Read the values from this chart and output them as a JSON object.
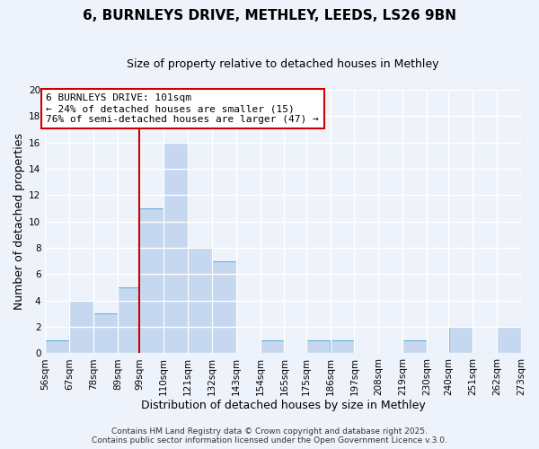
{
  "title": "6, BURNLEYS DRIVE, METHLEY, LEEDS, LS26 9BN",
  "subtitle": "Size of property relative to detached houses in Methley",
  "xlabel": "Distribution of detached houses by size in Methley",
  "ylabel": "Number of detached properties",
  "bin_edges": [
    56,
    67,
    78,
    89,
    99,
    110,
    121,
    132,
    143,
    154,
    165,
    175,
    186,
    197,
    208,
    219,
    230,
    240,
    251,
    262,
    273
  ],
  "counts": [
    1,
    4,
    3,
    5,
    11,
    16,
    8,
    7,
    0,
    1,
    0,
    1,
    1,
    0,
    0,
    1,
    0,
    2,
    0,
    2
  ],
  "bar_color": "#c5d8f0",
  "bar_edge_color": "#6aaed6",
  "vline_x": 99,
  "vline_color": "#cc0000",
  "ylim": [
    0,
    20
  ],
  "yticks": [
    0,
    2,
    4,
    6,
    8,
    10,
    12,
    14,
    16,
    18,
    20
  ],
  "tick_labels": [
    "56sqm",
    "67sqm",
    "78sqm",
    "89sqm",
    "99sqm",
    "110sqm",
    "121sqm",
    "132sqm",
    "143sqm",
    "154sqm",
    "165sqm",
    "175sqm",
    "186sqm",
    "197sqm",
    "208sqm",
    "219sqm",
    "230sqm",
    "240sqm",
    "251sqm",
    "262sqm",
    "273sqm"
  ],
  "annotation_title": "6 BURNLEYS DRIVE: 101sqm",
  "annotation_line1": "← 24% of detached houses are smaller (15)",
  "annotation_line2": "76% of semi-detached houses are larger (47) →",
  "annotation_box_color": "#ffffff",
  "annotation_box_edge": "#cc0000",
  "footer1": "Contains HM Land Registry data © Crown copyright and database right 2025.",
  "footer2": "Contains public sector information licensed under the Open Government Licence v.3.0.",
  "bg_color": "#eef3fb",
  "grid_color": "#ffffff",
  "title_fontsize": 11,
  "subtitle_fontsize": 9,
  "axis_label_fontsize": 9,
  "tick_fontsize": 7.5,
  "annotation_fontsize": 8,
  "footer_fontsize": 6.5
}
